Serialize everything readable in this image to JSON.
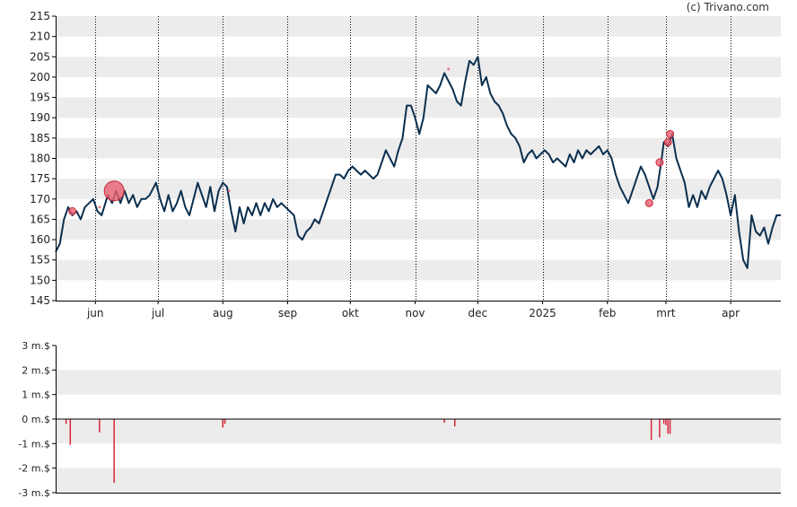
{
  "credit": "(c) Trivano.com",
  "colors": {
    "band": "#ececec",
    "price_line": "#0b2f4f",
    "marker_fill": "#e8606f",
    "marker_stroke": "#c9283a",
    "volume_bar": "#d8263a",
    "axis": "#000000",
    "grid": "#000000"
  },
  "chart_data": [
    {
      "type": "line",
      "title": "",
      "ylim": [
        145,
        215
      ],
      "y_ticks": [
        145,
        150,
        155,
        160,
        165,
        170,
        175,
        180,
        185,
        190,
        195,
        200,
        205,
        210,
        215
      ],
      "y_tick_labels": [
        "145",
        "150",
        "155",
        "160",
        "165",
        "170",
        "175",
        "180",
        "185",
        "190",
        "195",
        "200",
        "205",
        "210",
        "215"
      ],
      "x_start": "2024-05-13",
      "x_end": "2025-04-25",
      "x_month_ticks": [
        {
          "date": "2024-06-01",
          "label": "jun"
        },
        {
          "date": "2024-07-01",
          "label": "jul"
        },
        {
          "date": "2024-08-01",
          "label": "aug"
        },
        {
          "date": "2024-09-01",
          "label": "sep"
        },
        {
          "date": "2024-10-01",
          "label": "okt"
        },
        {
          "date": "2024-11-01",
          "label": "nov"
        },
        {
          "date": "2024-12-01",
          "label": "dec"
        },
        {
          "date": "2025-01-01",
          "label": "2025"
        },
        {
          "date": "2025-02-01",
          "label": "feb"
        },
        {
          "date": "2025-03-01",
          "label": "mrt"
        },
        {
          "date": "2025-04-01",
          "label": "apr"
        }
      ],
      "grid": "vertical dotted at month starts, alternating horizontal bands",
      "series": [
        {
          "points": [
            [
              "2024-05-13",
              157
            ],
            [
              "2024-05-15",
              159
            ],
            [
              "2024-05-17",
              165
            ],
            [
              "2024-05-19",
              168
            ],
            [
              "2024-05-21",
              166
            ],
            [
              "2024-05-23",
              167
            ],
            [
              "2024-05-25",
              165
            ],
            [
              "2024-05-27",
              168
            ],
            [
              "2024-05-29",
              169
            ],
            [
              "2024-05-31",
              170
            ],
            [
              "2024-06-02",
              167
            ],
            [
              "2024-06-04",
              166
            ],
            [
              "2024-06-07",
              171
            ],
            [
              "2024-06-09",
              169
            ],
            [
              "2024-06-11",
              172
            ],
            [
              "2024-06-13",
              169
            ],
            [
              "2024-06-15",
              172
            ],
            [
              "2024-06-17",
              169
            ],
            [
              "2024-06-19",
              171
            ],
            [
              "2024-06-21",
              168
            ],
            [
              "2024-06-23",
              170
            ],
            [
              "2024-06-25",
              170
            ],
            [
              "2024-06-27",
              171
            ],
            [
              "2024-06-30",
              174
            ],
            [
              "2024-07-02",
              170
            ],
            [
              "2024-07-04",
              167
            ],
            [
              "2024-07-06",
              171
            ],
            [
              "2024-07-08",
              167
            ],
            [
              "2024-07-10",
              169
            ],
            [
              "2024-07-12",
              172
            ],
            [
              "2024-07-14",
              168
            ],
            [
              "2024-07-16",
              166
            ],
            [
              "2024-07-18",
              170
            ],
            [
              "2024-07-20",
              174
            ],
            [
              "2024-07-22",
              171
            ],
            [
              "2024-07-24",
              168
            ],
            [
              "2024-07-26",
              173
            ],
            [
              "2024-07-28",
              167
            ],
            [
              "2024-07-30",
              172
            ],
            [
              "2024-08-01",
              174
            ],
            [
              "2024-08-03",
              173
            ],
            [
              "2024-08-05",
              167
            ],
            [
              "2024-08-07",
              162
            ],
            [
              "2024-08-09",
              168
            ],
            [
              "2024-08-11",
              164
            ],
            [
              "2024-08-13",
              168
            ],
            [
              "2024-08-15",
              166
            ],
            [
              "2024-08-17",
              169
            ],
            [
              "2024-08-19",
              166
            ],
            [
              "2024-08-21",
              169
            ],
            [
              "2024-08-23",
              167
            ],
            [
              "2024-08-25",
              170
            ],
            [
              "2024-08-27",
              168
            ],
            [
              "2024-08-29",
              169
            ],
            [
              "2024-08-31",
              168
            ],
            [
              "2024-09-02",
              167
            ],
            [
              "2024-09-04",
              166
            ],
            [
              "2024-09-06",
              161
            ],
            [
              "2024-09-08",
              160
            ],
            [
              "2024-09-10",
              162
            ],
            [
              "2024-09-12",
              163
            ],
            [
              "2024-09-14",
              165
            ],
            [
              "2024-09-16",
              164
            ],
            [
              "2024-09-18",
              167
            ],
            [
              "2024-09-20",
              170
            ],
            [
              "2024-09-22",
              173
            ],
            [
              "2024-09-24",
              176
            ],
            [
              "2024-09-26",
              176
            ],
            [
              "2024-09-28",
              175
            ],
            [
              "2024-09-30",
              177
            ],
            [
              "2024-10-02",
              178
            ],
            [
              "2024-10-04",
              177
            ],
            [
              "2024-10-06",
              176
            ],
            [
              "2024-10-08",
              177
            ],
            [
              "2024-10-10",
              176
            ],
            [
              "2024-10-12",
              175
            ],
            [
              "2024-10-14",
              176
            ],
            [
              "2024-10-16",
              179
            ],
            [
              "2024-10-18",
              182
            ],
            [
              "2024-10-20",
              180
            ],
            [
              "2024-10-22",
              178
            ],
            [
              "2024-10-24",
              182
            ],
            [
              "2024-10-26",
              185
            ],
            [
              "2024-10-28",
              193
            ],
            [
              "2024-10-30",
              193
            ],
            [
              "2024-11-01",
              190
            ],
            [
              "2024-11-03",
              186
            ],
            [
              "2024-11-05",
              190
            ],
            [
              "2024-11-07",
              198
            ],
            [
              "2024-11-09",
              197
            ],
            [
              "2024-11-11",
              196
            ],
            [
              "2024-11-13",
              198
            ],
            [
              "2024-11-15",
              201
            ],
            [
              "2024-11-17",
              199
            ],
            [
              "2024-11-19",
              197
            ],
            [
              "2024-11-21",
              194
            ],
            [
              "2024-11-23",
              193
            ],
            [
              "2024-11-25",
              199
            ],
            [
              "2024-11-27",
              204
            ],
            [
              "2024-11-29",
              203
            ],
            [
              "2024-12-01",
              205
            ],
            [
              "2024-12-03",
              198
            ],
            [
              "2024-12-05",
              200
            ],
            [
              "2024-12-07",
              196
            ],
            [
              "2024-12-09",
              194
            ],
            [
              "2024-12-11",
              193
            ],
            [
              "2024-12-13",
              191
            ],
            [
              "2024-12-15",
              188
            ],
            [
              "2024-12-17",
              186
            ],
            [
              "2024-12-19",
              185
            ],
            [
              "2024-12-21",
              183
            ],
            [
              "2024-12-23",
              179
            ],
            [
              "2024-12-25",
              181
            ],
            [
              "2024-12-27",
              182
            ],
            [
              "2024-12-29",
              180
            ],
            [
              "2024-12-31",
              181
            ],
            [
              "2025-01-02",
              182
            ],
            [
              "2025-01-04",
              181
            ],
            [
              "2025-01-06",
              179
            ],
            [
              "2025-01-08",
              180
            ],
            [
              "2025-01-10",
              179
            ],
            [
              "2025-01-12",
              178
            ],
            [
              "2025-01-14",
              181
            ],
            [
              "2025-01-16",
              179
            ],
            [
              "2025-01-18",
              182
            ],
            [
              "2025-01-20",
              180
            ],
            [
              "2025-01-22",
              182
            ],
            [
              "2025-01-24",
              181
            ],
            [
              "2025-01-26",
              182
            ],
            [
              "2025-01-28",
              183
            ],
            [
              "2025-01-30",
              181
            ],
            [
              "2025-02-01",
              182
            ],
            [
              "2025-02-03",
              180
            ],
            [
              "2025-02-05",
              176
            ],
            [
              "2025-02-07",
              173
            ],
            [
              "2025-02-09",
              171
            ],
            [
              "2025-02-11",
              169
            ],
            [
              "2025-02-13",
              172
            ],
            [
              "2025-02-15",
              175
            ],
            [
              "2025-02-17",
              178
            ],
            [
              "2025-02-19",
              176
            ],
            [
              "2025-02-21",
              173
            ],
            [
              "2025-02-23",
              170
            ],
            [
              "2025-02-25",
              173
            ],
            [
              "2025-02-27",
              180
            ],
            [
              "2025-02-28",
              184
            ],
            [
              "2025-03-02",
              183
            ],
            [
              "2025-03-04",
              186
            ],
            [
              "2025-03-06",
              180
            ],
            [
              "2025-03-08",
              177
            ],
            [
              "2025-03-10",
              174
            ],
            [
              "2025-03-12",
              168
            ],
            [
              "2025-03-14",
              171
            ],
            [
              "2025-03-16",
              168
            ],
            [
              "2025-03-18",
              172
            ],
            [
              "2025-03-20",
              170
            ],
            [
              "2025-03-22",
              173
            ],
            [
              "2025-03-24",
              175
            ],
            [
              "2025-03-26",
              177
            ],
            [
              "2025-03-28",
              175
            ],
            [
              "2025-03-30",
              171
            ],
            [
              "2025-04-01",
              166
            ],
            [
              "2025-04-03",
              171
            ],
            [
              "2025-04-05",
              162
            ],
            [
              "2025-04-07",
              155
            ],
            [
              "2025-04-09",
              153
            ],
            [
              "2025-04-11",
              166
            ],
            [
              "2025-04-13",
              162
            ],
            [
              "2025-04-15",
              161
            ],
            [
              "2025-04-17",
              163
            ],
            [
              "2025-04-19",
              159
            ],
            [
              "2025-04-21",
              163
            ],
            [
              "2025-04-23",
              166
            ],
            [
              "2025-04-25",
              166
            ]
          ]
        }
      ],
      "markers": [
        {
          "date": "2024-05-21",
          "value": 167,
          "size": "small"
        },
        {
          "date": "2024-06-03",
          "value": 168,
          "size": "dot"
        },
        {
          "date": "2024-06-10",
          "value": 172,
          "size": "large"
        },
        {
          "date": "2024-08-04",
          "value": 172,
          "size": "dot"
        },
        {
          "date": "2024-11-17",
          "value": 202,
          "size": "dot"
        },
        {
          "date": "2025-02-21",
          "value": 169,
          "size": "small"
        },
        {
          "date": "2025-02-26",
          "value": 179,
          "size": "small"
        },
        {
          "date": "2025-03-02",
          "value": 184,
          "size": "small"
        },
        {
          "date": "2025-03-03",
          "value": 186,
          "size": "small"
        }
      ]
    },
    {
      "type": "bar",
      "title": "",
      "ylim": [
        -3,
        3
      ],
      "y_ticks": [
        -3,
        -2,
        -1,
        0,
        1,
        2,
        3
      ],
      "y_tick_labels": [
        "-3 m.$",
        "-2 m.$",
        "-1 m.$",
        "0 m.$",
        "1 m.$",
        "2 m.$",
        "3 m.$"
      ],
      "bars": [
        {
          "date": "2024-05-18",
          "value": -0.2
        },
        {
          "date": "2024-05-20",
          "value": -1.05
        },
        {
          "date": "2024-06-03",
          "value": -0.55
        },
        {
          "date": "2024-06-10",
          "value": -2.6
        },
        {
          "date": "2024-08-01",
          "value": -0.35
        },
        {
          "date": "2024-08-02",
          "value": -0.2
        },
        {
          "date": "2024-11-15",
          "value": -0.15
        },
        {
          "date": "2024-11-20",
          "value": -0.3
        },
        {
          "date": "2025-02-22",
          "value": -0.85
        },
        {
          "date": "2025-02-26",
          "value": -0.75
        },
        {
          "date": "2025-02-28",
          "value": -0.2
        },
        {
          "date": "2025-03-01",
          "value": -0.25
        },
        {
          "date": "2025-03-02",
          "value": -0.6
        },
        {
          "date": "2025-03-03",
          "value": -0.6
        }
      ]
    }
  ]
}
